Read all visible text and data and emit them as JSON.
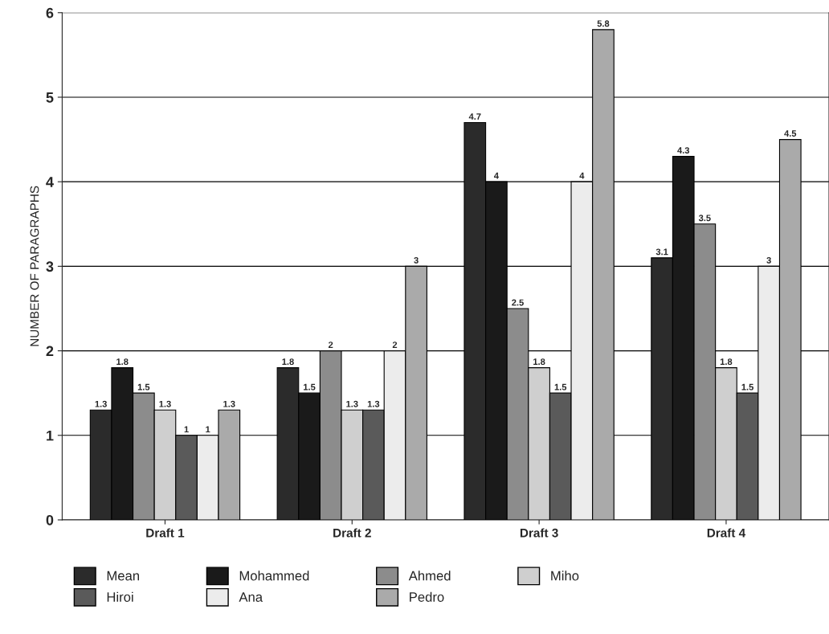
{
  "chart_data": {
    "type": "bar",
    "ylabel": "NUMBER OF PARAGRAPHS",
    "categories": [
      "Draft 1",
      "Draft 2",
      "Draft 3",
      "Draft 4"
    ],
    "series": [
      {
        "name": "Mean",
        "color": "#2b2b2b",
        "values": [
          1.3,
          1.8,
          4.7,
          3.1
        ]
      },
      {
        "name": "Mohammed",
        "color": "#1a1a1a",
        "values": [
          1.8,
          1.5,
          4,
          4.3
        ]
      },
      {
        "name": "Ahmed",
        "color": "#8c8c8c",
        "values": [
          1.5,
          2,
          2.5,
          3.5
        ]
      },
      {
        "name": "Miho",
        "color": "#cfcfcf",
        "values": [
          1.3,
          1.3,
          1.8,
          1.8
        ]
      },
      {
        "name": "Hiroi",
        "color": "#5a5a5a",
        "values": [
          1,
          1.3,
          1.5,
          1.5
        ]
      },
      {
        "name": "Ana",
        "color": "#ececec",
        "values": [
          1,
          2,
          4,
          3
        ]
      },
      {
        "name": "Pedro",
        "color": "#aaaaaa",
        "values": [
          1.3,
          3,
          5.8,
          4.5
        ]
      }
    ],
    "ylim": [
      0,
      6
    ],
    "yticks": [
      0,
      1,
      2,
      3,
      4,
      5,
      6
    ],
    "grid": "y",
    "legend": "bottom",
    "data_labels": true
  }
}
